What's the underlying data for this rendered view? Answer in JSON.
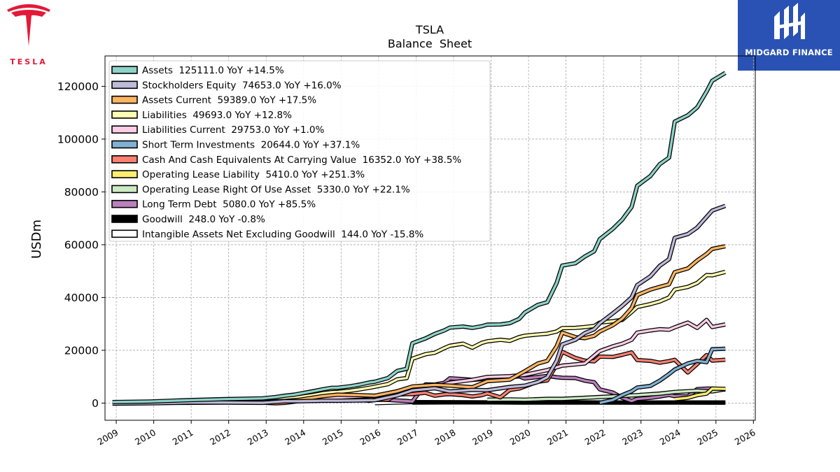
{
  "header": {
    "left_logo": {
      "icon": "tesla-logo-icon",
      "wordmark": "TESLA",
      "color": "#e31937"
    },
    "right_logo": {
      "icon": "midgard-logo-icon",
      "text": "MIDGARD FINANCE",
      "background": "#2a52b4"
    }
  },
  "chart_data": {
    "type": "line",
    "title": "TSLA",
    "subtitle": "Balance  Sheet",
    "xlabel": "",
    "ylabel": "USDm",
    "xlim": [
      2008.7,
      2026.05
    ],
    "ylim": [
      -6500,
      131500
    ],
    "x_ticks": [
      2009,
      2010,
      2011,
      2012,
      2013,
      2014,
      2015,
      2016,
      2017,
      2018,
      2019,
      2020,
      2021,
      2022,
      2023,
      2024,
      2025,
      2026
    ],
    "y_ticks": [
      0,
      20000,
      40000,
      60000,
      80000,
      100000,
      120000
    ],
    "grid": true,
    "legend_position": "upper left",
    "series": [
      {
        "name": "Assets  125111.0 YoY +14.5%",
        "color": "#8dd3c7",
        "x": [
          2008.9,
          2009.9,
          2010.9,
          2011.9,
          2012.9,
          2013.25,
          2013.5,
          2013.75,
          2013.9,
          2014.25,
          2014.5,
          2014.75,
          2014.9,
          2015.25,
          2015.5,
          2015.75,
          2015.9,
          2016.25,
          2016.5,
          2016.75,
          2016.9,
          2017.25,
          2017.5,
          2017.75,
          2017.9,
          2018.25,
          2018.5,
          2018.75,
          2018.9,
          2019.25,
          2019.5,
          2019.75,
          2019.9,
          2020.25,
          2020.5,
          2020.75,
          2020.9,
          2021.25,
          2021.5,
          2021.75,
          2021.9,
          2022.25,
          2022.5,
          2022.75,
          2022.9,
          2023.25,
          2023.5,
          2023.75,
          2023.9,
          2024.25,
          2024.5,
          2024.75,
          2024.9,
          2025.25
        ],
        "values": [
          400,
          600,
          1100,
          1500,
          1800,
          2300,
          2800,
          3200,
          3600,
          4500,
          5200,
          5800,
          5800,
          6400,
          7000,
          7800,
          8100,
          9500,
          12200,
          13000,
          22700,
          24500,
          26200,
          27500,
          28600,
          29000,
          28500,
          29100,
          29700,
          29800,
          30300,
          31900,
          34300,
          37200,
          38200,
          45500,
          52100,
          53000,
          55500,
          57500,
          62100,
          66000,
          69500,
          74300,
          82300,
          86000,
          90500,
          93000,
          106600,
          109000,
          112000,
          118000,
          122100,
          125100
        ]
      },
      {
        "name": "Stockholders Equity  74653.0 YoY +16.0%",
        "color": "#bebada",
        "x": [
          2008.9,
          2009.9,
          2010.9,
          2011.9,
          2012.9,
          2013.5,
          2013.9,
          2014.5,
          2014.9,
          2015.5,
          2015.9,
          2016.5,
          2016.9,
          2017.5,
          2017.9,
          2018.5,
          2018.9,
          2019.5,
          2019.9,
          2020.25,
          2020.5,
          2020.75,
          2020.9,
          2021.25,
          2021.5,
          2021.75,
          2021.9,
          2022.25,
          2022.5,
          2022.75,
          2022.9,
          2023.25,
          2023.5,
          2023.75,
          2023.9,
          2024.25,
          2024.5,
          2024.75,
          2024.9,
          2025.25
        ],
        "values": [
          -200,
          -100,
          200,
          200,
          100,
          700,
          700,
          900,
          900,
          1000,
          1100,
          2900,
          4800,
          5600,
          4400,
          5000,
          4900,
          6100,
          6600,
          8000,
          9800,
          16000,
          22200,
          24000,
          26500,
          28000,
          30200,
          34000,
          36800,
          40000,
          44700,
          48000,
          52000,
          54500,
          62600,
          64000,
          66500,
          70500,
          72900,
          74700
        ]
      },
      {
        "name": "Assets Current  59389.0 YoY +17.5%",
        "color": "#fdb462",
        "x": [
          2008.9,
          2009.9,
          2010.9,
          2011.9,
          2012.9,
          2013.5,
          2013.9,
          2014.5,
          2014.9,
          2015.5,
          2015.9,
          2016.5,
          2016.9,
          2017.5,
          2017.9,
          2018.5,
          2018.9,
          2019.5,
          2019.9,
          2020.25,
          2020.5,
          2020.75,
          2020.9,
          2021.25,
          2021.5,
          2021.75,
          2021.9,
          2022.25,
          2022.5,
          2022.75,
          2022.9,
          2023.25,
          2023.5,
          2023.75,
          2023.9,
          2024.25,
          2024.5,
          2024.75,
          2024.9,
          2025.25
        ],
        "values": [
          200,
          300,
          300,
          400,
          500,
          800,
          1300,
          2600,
          3200,
          3000,
          2800,
          4500,
          6300,
          6900,
          6600,
          6000,
          8300,
          8900,
          12100,
          15000,
          16000,
          21500,
          26700,
          25000,
          24600,
          25500,
          27100,
          29500,
          32000,
          36000,
          40900,
          43000,
          44000,
          45000,
          49600,
          51000,
          54000,
          56500,
          58400,
          59400
        ]
      },
      {
        "name": "Liabilities  49693.0 YoY +12.8%",
        "color": "#ffffb3",
        "x": [
          2008.9,
          2009.9,
          2010.9,
          2011.9,
          2012.9,
          2013.25,
          2013.5,
          2013.75,
          2013.9,
          2014.25,
          2014.5,
          2014.75,
          2014.9,
          2015.25,
          2015.5,
          2015.75,
          2015.9,
          2016.25,
          2016.5,
          2016.75,
          2016.9,
          2017.25,
          2017.5,
          2017.75,
          2017.9,
          2018.25,
          2018.5,
          2018.75,
          2018.9,
          2019.25,
          2019.5,
          2019.75,
          2019.9,
          2020.25,
          2020.5,
          2020.75,
          2020.9,
          2021.25,
          2021.5,
          2021.75,
          2021.9,
          2022.25,
          2022.5,
          2022.75,
          2022.9,
          2023.25,
          2023.5,
          2023.75,
          2023.9,
          2024.25,
          2024.5,
          2024.75,
          2024.9,
          2025.25
        ],
        "values": [
          300,
          400,
          500,
          1000,
          1200,
          1500,
          1800,
          2100,
          2300,
          3000,
          3700,
          4100,
          4200,
          4700,
          5200,
          5800,
          6200,
          7200,
          9000,
          9500,
          16800,
          18500,
          19100,
          20800,
          21700,
          22500,
          21000,
          22800,
          23400,
          24000,
          23600,
          25000,
          25500,
          26000,
          26300,
          27100,
          28400,
          28500,
          28800,
          29200,
          30500,
          31000,
          31500,
          34500,
          36400,
          37500,
          38500,
          40000,
          43000,
          44000,
          45500,
          48500,
          48400,
          49700
        ]
      },
      {
        "name": "Liabilities Current  29753.0 YoY +1.0%",
        "color": "#fccde5",
        "x": [
          2008.9,
          2009.9,
          2010.9,
          2011.9,
          2012.9,
          2013.5,
          2013.9,
          2014.5,
          2014.9,
          2015.5,
          2015.9,
          2016.5,
          2016.9,
          2017.5,
          2017.9,
          2018.5,
          2018.9,
          2019.5,
          2019.9,
          2020.5,
          2020.9,
          2021.5,
          2021.9,
          2022.25,
          2022.5,
          2022.75,
          2022.9,
          2023.25,
          2023.5,
          2023.75,
          2023.9,
          2024.25,
          2024.5,
          2024.75,
          2024.9,
          2025.25
        ],
        "values": [
          200,
          300,
          300,
          500,
          500,
          800,
          700,
          1800,
          2100,
          2500,
          2800,
          3500,
          5800,
          5900,
          7700,
          8800,
          9900,
          10200,
          10700,
          12500,
          14200,
          15000,
          19700,
          21500,
          22500,
          24000,
          26700,
          27500,
          28000,
          27800,
          28700,
          30500,
          28500,
          31500,
          28800,
          29800
        ]
      },
      {
        "name": "Short Term Investments  20644.0 YoY +37.1%",
        "color": "#80b1d3",
        "x": [
          2021.9,
          2022.25,
          2022.5,
          2022.75,
          2022.9,
          2023.25,
          2023.5,
          2023.75,
          2023.9,
          2024.25,
          2024.5,
          2024.75,
          2024.9,
          2025.25
        ],
        "values": [
          100,
          1200,
          3000,
          4500,
          5900,
          6500,
          8500,
          11000,
          12700,
          15000,
          16000,
          15500,
          20400,
          20600
        ]
      },
      {
        "name": "Cash And Cash Equivalents At Carrying Value  16352.0 YoY +38.5%",
        "color": "#fb8072",
        "x": [
          2008.9,
          2009.9,
          2010.9,
          2011.9,
          2012.9,
          2013.25,
          2013.5,
          2013.9,
          2014.25,
          2014.5,
          2014.75,
          2014.9,
          2015.25,
          2015.5,
          2015.75,
          2015.9,
          2016.25,
          2016.5,
          2016.75,
          2016.9,
          2017.25,
          2017.5,
          2017.75,
          2017.9,
          2018.25,
          2018.5,
          2018.75,
          2018.9,
          2019.25,
          2019.5,
          2019.75,
          2019.9,
          2020.25,
          2020.5,
          2020.75,
          2020.9,
          2021.25,
          2021.5,
          2021.75,
          2021.9,
          2022.25,
          2022.5,
          2022.75,
          2022.9,
          2023.25,
          2023.5,
          2023.75,
          2023.9,
          2024.25,
          2024.5,
          2024.75,
          2024.9,
          2025.25
        ],
        "values": [
          100,
          100,
          100,
          250,
          200,
          -100,
          100,
          800,
          1000,
          2300,
          2600,
          1900,
          1500,
          1200,
          900,
          1200,
          1300,
          3200,
          3400,
          3400,
          3900,
          2800,
          3300,
          3400,
          3000,
          2500,
          3000,
          3700,
          2200,
          5000,
          5500,
          6300,
          8100,
          8600,
          14500,
          19400,
          17100,
          16100,
          15800,
          17600,
          17500,
          18300,
          19200,
          16300,
          16000,
          15300,
          15900,
          16400,
          11600,
          14800,
          18200,
          16100,
          16400
        ]
      },
      {
        "name": "Operating Lease Liability  5410.0 YoY +251.3%",
        "color": "#ffed6f",
        "x": [
          2023.9,
          2024.25,
          2024.5,
          2024.75,
          2024.9,
          2025.25
        ],
        "values": [
          1500,
          2000,
          3000,
          3600,
          5500,
          5400
        ]
      },
      {
        "name": "Operating Lease Right Of Use Asset  5330.0 YoY +22.1%",
        "color": "#ccebc5",
        "x": [
          2018.9,
          2019.5,
          2019.9,
          2020.5,
          2020.9,
          2021.5,
          2021.9,
          2022.5,
          2022.9,
          2023.5,
          2023.9,
          2024.5,
          2024.9,
          2025.25
        ],
        "values": [
          1300,
          1400,
          1300,
          1600,
          1600,
          2000,
          2300,
          2700,
          3000,
          3600,
          4200,
          4700,
          4400,
          5300
        ]
      },
      {
        "name": "Long Term Debt  5080.0 YoY +85.5%",
        "color": "#bc80bd",
        "x": [
          2014.9,
          2015.25,
          2015.5,
          2015.75,
          2015.9,
          2016.25,
          2016.5,
          2016.75,
          2016.9,
          2017.25,
          2017.5,
          2017.75,
          2017.9,
          2018.25,
          2018.5,
          2018.75,
          2018.9,
          2019.25,
          2019.5,
          2019.75,
          2019.9,
          2020.25,
          2020.5,
          2020.75,
          2020.9,
          2021.25,
          2021.5,
          2021.75,
          2021.9,
          2022.25,
          2022.5,
          2022.75,
          2022.9,
          2023.25,
          2023.5,
          2023.75,
          2023.9,
          2024.25,
          2024.5,
          2024.75,
          2024.9,
          2025.25
        ],
        "values": [
          2900,
          2600,
          2200,
          1800,
          1400,
          1200,
          1000,
          800,
          600,
          7100,
          7000,
          7700,
          9400,
          9100,
          8800,
          9100,
          9400,
          9300,
          9800,
          10100,
          9300,
          9900,
          10300,
          9800,
          9600,
          9500,
          8500,
          7900,
          5200,
          4000,
          2000,
          800,
          1600,
          2000,
          2500,
          3100,
          2600,
          2500,
          5300,
          5500,
          5500,
          5100
        ]
      },
      {
        "name": "Goodwill  248.0 YoY -0.8%",
        "color": "#000000",
        "x": [
          2016.9,
          2017.9,
          2018.9,
          2019.9,
          2020.9,
          2021.9,
          2022.9,
          2023.9,
          2024.9,
          2025.25
        ],
        "values": [
          200,
          250,
          250,
          200,
          200,
          200,
          200,
          250,
          250,
          250
        ]
      },
      {
        "name": "Intangible Assets Net Excluding Goodwill  144.0 YoY -15.8%",
        "color": "#ffffff",
        "x": [
          2015.9,
          2016.9,
          2017.9,
          2018.9,
          2019.9,
          2020.9,
          2021.9,
          2022.9,
          2023.9,
          2024.9,
          2025.25
        ],
        "values": [
          0,
          400,
          350,
          280,
          240,
          310,
          260,
          210,
          180,
          150,
          144
        ]
      }
    ]
  }
}
